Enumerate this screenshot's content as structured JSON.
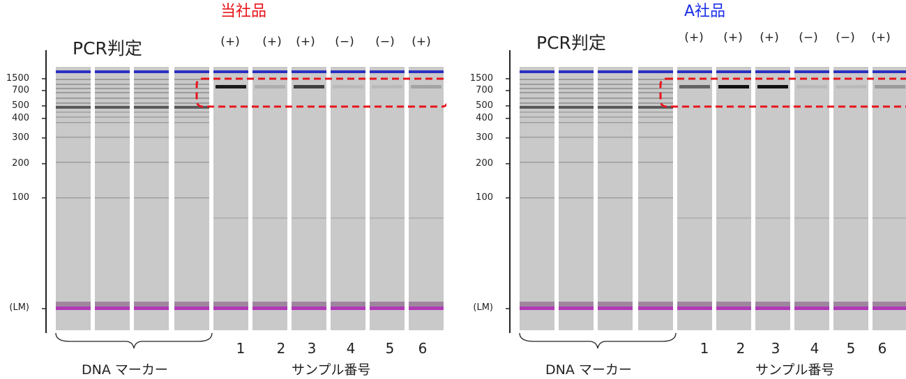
{
  "panels": [
    {
      "title": "当社品",
      "title_color": "#e8141b",
      "pcr_label": "PCR判定",
      "judgments": [
        "(+)",
        "(+)",
        "(+)",
        "(−)",
        "(−)",
        "(+)"
      ],
      "sample_numbers": [
        "1",
        "2",
        "3",
        "4",
        "5",
        "6"
      ],
      "marker_label": "DNA マーカー",
      "sample_label": "サンプル番号",
      "y_ticks": [
        "1500",
        "700",
        "500",
        "400",
        "300",
        "200",
        "100",
        "(LM)"
      ],
      "sample_band_intensity": [
        0.95,
        0.15,
        0.75,
        0.08,
        0.08,
        0.2
      ]
    },
    {
      "title": "A社品",
      "title_color": "#1b2ee8",
      "pcr_label": "PCR判定",
      "judgments": [
        "(+)",
        "(+)",
        "(+)",
        "(−)",
        "(−)",
        "(+)"
      ],
      "sample_numbers": [
        "1",
        "2",
        "3",
        "4",
        "5",
        "6"
      ],
      "marker_label": "DNA マーカー",
      "sample_label": "サンプル番号",
      "y_ticks": [
        "1500",
        "700",
        "500",
        "400",
        "300",
        "200",
        "100",
        "(LM)"
      ],
      "sample_band_intensity": [
        0.55,
        1.0,
        1.0,
        0.08,
        0.08,
        0.25
      ]
    }
  ],
  "colors": {
    "upper_marker": "#2a2fc0",
    "lower_marker": "#b03ab8",
    "highlight_box": "#e8141b",
    "gel_background": "#c9c9c9"
  }
}
